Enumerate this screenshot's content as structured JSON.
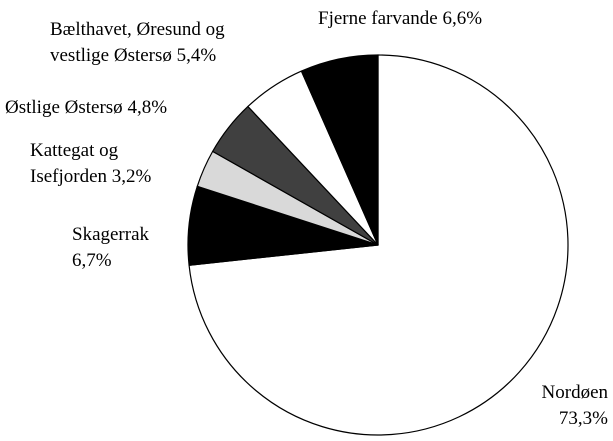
{
  "chart_data": {
    "type": "pie",
    "categories": [
      "Nordøen",
      "Skagerrak",
      "Kattegat og Isefjorden",
      "Østlige Østersø",
      "Bælthavet, Øresund og vestlige Østersø",
      "Fjerne farvande"
    ],
    "values": [
      73.3,
      6.7,
      3.2,
      4.8,
      5.4,
      6.6
    ],
    "value_labels": [
      "73,3%",
      "6,7%",
      "3,2%",
      "4,8%",
      "5,4%",
      "6,6%"
    ],
    "colors": [
      "#ffffff",
      "#000000",
      "#d9d9d9",
      "#404040",
      "#ffffff",
      "#000000"
    ]
  }
}
